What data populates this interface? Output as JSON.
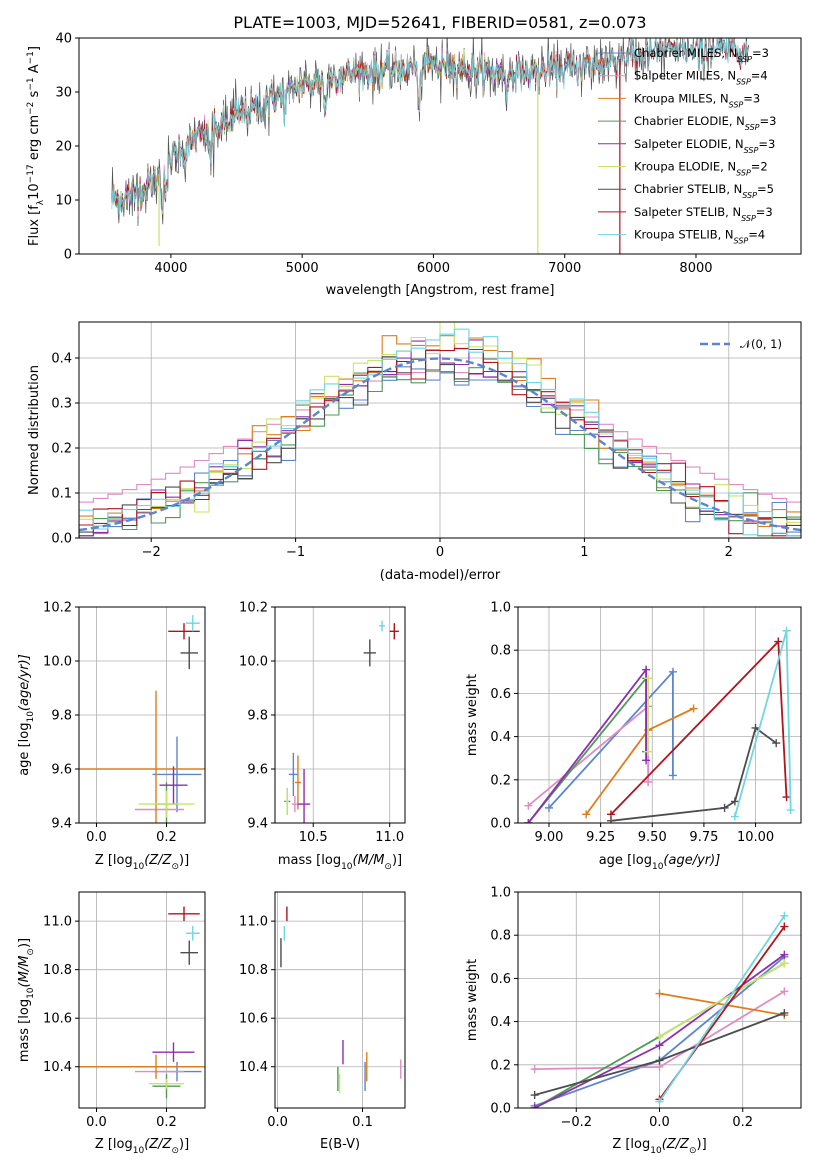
{
  "title": "PLATE=1003, MJD=52641, FIBERID=0581, z=0.073",
  "colors": {
    "Chabrier MILES": "#5b86cc",
    "Salpeter MILES": "#e08cc3",
    "Kroupa MILES": "#de7d1d",
    "Chabrier ELODIE": "#4e9a57",
    "Salpeter ELODIE": "#8e2fae",
    "Kroupa ELODIE": "#c9e36b",
    "Chabrier STELIB": "#4d4d4d",
    "Salpeter STELIB": "#b0141d",
    "Kroupa STELIB": "#6fd6e2"
  },
  "legend_spectrum": [
    {
      "key": "Chabrier MILES",
      "label": "Chabrier MILES, N",
      "sub": "SSP",
      "tail": "=3"
    },
    {
      "key": "Salpeter MILES",
      "label": "Salpeter MILES, N",
      "sub": "SSP",
      "tail": "=4"
    },
    {
      "key": "Kroupa MILES",
      "label": "Kroupa MILES, N",
      "sub": "SSP",
      "tail": "=3"
    },
    {
      "key": "Chabrier ELODIE",
      "label": "Chabrier ELODIE, N",
      "sub": "SSP",
      "tail": "=3"
    },
    {
      "key": "Salpeter ELODIE",
      "label": "Salpeter ELODIE, N",
      "sub": "SSP",
      "tail": "=3"
    },
    {
      "key": "Kroupa ELODIE",
      "label": "Kroupa ELODIE, N",
      "sub": "SSP",
      "tail": "=2"
    },
    {
      "key": "Chabrier STELIB",
      "label": "Chabrier STELIB, N",
      "sub": "SSP",
      "tail": "=5"
    },
    {
      "key": "Salpeter STELIB",
      "label": "Salpeter STELIB, N",
      "sub": "SSP",
      "tail": "=3"
    },
    {
      "key": "Kroupa STELIB",
      "label": "Kroupa STELIB, N",
      "sub": "SSP",
      "tail": "=4"
    }
  ],
  "chart_data": [
    {
      "id": "spectrum",
      "type": "line",
      "xlabel": "wavelength [Angstrom, rest frame]",
      "ylabel": "Flux [f",
      "ylabel_parts": [
        "Flux [f",
        "λ",
        "10",
        "−17",
        " erg cm",
        "−2",
        " s",
        "−1",
        " A",
        "−1",
        "]"
      ],
      "xlim": [
        3300,
        8800
      ],
      "ylim": [
        0,
        40
      ],
      "xticks": [
        4000,
        5000,
        6000,
        7000,
        8000
      ],
      "yticks": [
        0,
        10,
        20,
        30,
        40
      ],
      "continuum": [
        [
          3550,
          10
        ],
        [
          3700,
          11
        ],
        [
          3850,
          13
        ],
        [
          3950,
          16
        ],
        [
          4050,
          19.5
        ],
        [
          4200,
          21.5
        ],
        [
          4400,
          24
        ],
        [
          4600,
          26.5
        ],
        [
          4800,
          29
        ],
        [
          5000,
          31
        ],
        [
          5200,
          32.5
        ],
        [
          5400,
          33.5
        ],
        [
          5600,
          34
        ],
        [
          5800,
          34.5
        ],
        [
          6000,
          35
        ],
        [
          6200,
          34.5
        ],
        [
          6400,
          34
        ],
        [
          6600,
          33.5
        ],
        [
          6800,
          33.5
        ],
        [
          7000,
          34
        ],
        [
          7200,
          35
        ],
        [
          7400,
          36
        ],
        [
          7600,
          37
        ],
        [
          7800,
          37.5
        ],
        [
          8000,
          37.5
        ],
        [
          8200,
          38
        ],
        [
          8400,
          38
        ]
      ],
      "absorption": [
        [
          3933,
          6
        ],
        [
          3968,
          6
        ],
        [
          4102,
          3
        ],
        [
          4300,
          5
        ],
        [
          4861,
          3
        ],
        [
          5175,
          6
        ],
        [
          5890,
          8
        ],
        [
          6563,
          4
        ],
        [
          8498,
          2
        ],
        [
          8542,
          3
        ],
        [
          8662,
          3
        ]
      ],
      "artifacts": [
        {
          "series": "Kroupa ELODIE",
          "x": 3910,
          "y": 1.5
        },
        {
          "series": "Kroupa ELODIE",
          "x": 6795,
          "y": 0
        },
        {
          "series": "Salpeter STELIB",
          "x": 7420,
          "y": 0
        }
      ]
    },
    {
      "id": "residuals",
      "type": "histogram",
      "xlabel": "(data-model)/error",
      "ylabel": "Normed distribution",
      "xlim": [
        -2.5,
        2.5
      ],
      "ylim": [
        0,
        0.48
      ],
      "xticks": [
        -2,
        -1,
        0,
        1,
        2
      ],
      "yticks": [
        0,
        0.1,
        0.2,
        0.3,
        0.4
      ],
      "grid": true,
      "legend": {
        "label": "𝒩(0, 1)",
        "position": "top-right"
      },
      "bin_width": 0.1
    },
    {
      "id": "age_vs_Z",
      "type": "errorbar",
      "xlabel": "Z [log",
      "xlabel_parts": [
        "Z [log",
        "10",
        "(Z/Z",
        "⊙",
        ")]"
      ],
      "ylabel_parts": [
        "age  [log",
        "10",
        "(age/yr)]"
      ],
      "xlim": [
        -0.05,
        0.31
      ],
      "ylim": [
        9.4,
        10.2
      ],
      "xticks": [
        "0.0",
        "0.2"
      ],
      "xtick_values": [
        0.0,
        0.2
      ],
      "yticks": [
        "9.4",
        "9.6",
        "9.8",
        "10.0",
        "10.2"
      ],
      "ytick_values": [
        9.4,
        9.6,
        9.8,
        10.0,
        10.2
      ],
      "points": [
        {
          "series": "Chabrier MILES",
          "x": 0.23,
          "y": 9.58,
          "xe": 0.07,
          "ye": 0.14
        },
        {
          "series": "Salpeter MILES",
          "x": 0.18,
          "y": 9.45,
          "xe": 0.07,
          "ye": 0.0
        },
        {
          "series": "Kroupa MILES",
          "x": 0.17,
          "y": 9.6,
          "xe": 0.22,
          "ye": 0.29
        },
        {
          "series": "Chabrier ELODIE",
          "x": 0.2,
          "y": 9.47,
          "xe": 0.03,
          "ye": 0.08
        },
        {
          "series": "Salpeter ELODIE",
          "x": 0.22,
          "y": 9.54,
          "xe": 0.04,
          "ye": 0.07
        },
        {
          "series": "Kroupa ELODIE",
          "x": 0.2,
          "y": 9.47,
          "xe": 0.08,
          "ye": 0.05
        },
        {
          "series": "Chabrier STELIB",
          "x": 0.265,
          "y": 10.03,
          "xe": 0.025,
          "ye": 0.06
        },
        {
          "series": "Salpeter STELIB",
          "x": 0.25,
          "y": 10.11,
          "xe": 0.045,
          "ye": 0.03
        },
        {
          "series": "Kroupa STELIB",
          "x": 0.275,
          "y": 10.14,
          "xe": 0.02,
          "ye": 0.03
        }
      ]
    },
    {
      "id": "age_vs_mass",
      "type": "errorbar",
      "xlabel_parts": [
        "mass [log",
        "10",
        "(M/M",
        "⊙",
        ")]"
      ],
      "xlim": [
        10.25,
        11.1
      ],
      "ylim": [
        9.4,
        10.2
      ],
      "xticks": [
        "10.5",
        "11.0"
      ],
      "xtick_values": [
        10.5,
        11.0
      ],
      "yticks": [
        "9.4",
        "9.6",
        "9.8",
        "10.0",
        "10.2"
      ],
      "ytick_values": [
        9.4,
        9.6,
        9.8,
        10.0,
        10.2
      ],
      "points": [
        {
          "series": "Chabrier MILES",
          "x": 10.37,
          "y": 9.58,
          "xe": 0.03,
          "ye": 0.08
        },
        {
          "series": "Salpeter MILES",
          "x": 10.38,
          "y": 9.47,
          "xe": 0.02,
          "ye": 0.03
        },
        {
          "series": "Kroupa MILES",
          "x": 10.4,
          "y": 9.55,
          "xe": 0.02,
          "ye": 0.1
        },
        {
          "series": "Chabrier ELODIE",
          "x": 10.33,
          "y": 9.48,
          "xe": 0.02,
          "ye": 0.05
        },
        {
          "series": "Salpeter ELODIE",
          "x": 10.44,
          "y": 9.47,
          "xe": 0.04,
          "ye": 0.13
        },
        {
          "series": "Kroupa ELODIE",
          "x": 10.33,
          "y": 9.48,
          "xe": 0.01,
          "ye": 0.05
        },
        {
          "series": "Chabrier STELIB",
          "x": 10.87,
          "y": 10.03,
          "xe": 0.04,
          "ye": 0.05
        },
        {
          "series": "Salpeter STELIB",
          "x": 11.03,
          "y": 10.11,
          "xe": 0.03,
          "ye": 0.03
        },
        {
          "series": "Kroupa STELIB",
          "x": 10.95,
          "y": 10.13,
          "xe": 0.02,
          "ye": 0.02
        }
      ]
    },
    {
      "id": "weight_vs_age",
      "type": "line",
      "xlabel_parts": [
        "age  [log",
        "10",
        "(age/yr)]"
      ],
      "ylabel": "mass weight",
      "xlim": [
        8.85,
        10.22
      ],
      "ylim": [
        0,
        1
      ],
      "xticks": [
        "9.00",
        "9.25",
        "9.50",
        "9.75",
        "10.00"
      ],
      "xtick_values": [
        9.0,
        9.25,
        9.5,
        9.75,
        10.0
      ],
      "yticks": [
        "0.0",
        "0.2",
        "0.4",
        "0.6",
        "0.8",
        "1.0"
      ],
      "ytick_values": [
        0,
        0.2,
        0.4,
        0.6,
        0.8,
        1.0
      ],
      "grid": true,
      "series": [
        {
          "name": "Chabrier MILES",
          "x": [
            9.0,
            9.6,
            9.6
          ],
          "y": [
            0.07,
            0.7,
            0.22
          ]
        },
        {
          "name": "Salpeter MILES",
          "x": [
            8.9,
            9.48,
            9.48,
            9.48
          ],
          "y": [
            0.08,
            0.54,
            0.19,
            0.19
          ]
        },
        {
          "name": "Kroupa MILES",
          "x": [
            9.18,
            9.48,
            9.7
          ],
          "y": [
            0.04,
            0.43,
            0.53
          ]
        },
        {
          "name": "Chabrier ELODIE",
          "x": [
            8.9,
            9.47,
            9.47
          ],
          "y": [
            0.0,
            0.67,
            0.33
          ]
        },
        {
          "name": "Salpeter ELODIE",
          "x": [
            8.9,
            9.47,
            9.47
          ],
          "y": [
            0.0,
            0.71,
            0.29
          ]
        },
        {
          "name": "Kroupa ELODIE",
          "x": [
            9.48,
            9.48
          ],
          "y": [
            0.67,
            0.33
          ]
        },
        {
          "name": "Chabrier STELIB",
          "x": [
            9.3,
            9.85,
            9.9,
            10.0,
            10.1
          ],
          "y": [
            0.01,
            0.07,
            0.1,
            0.44,
            0.37
          ]
        },
        {
          "name": "Salpeter STELIB",
          "x": [
            9.3,
            10.11,
            10.15
          ],
          "y": [
            0.04,
            0.84,
            0.12
          ]
        },
        {
          "name": "Kroupa STELIB",
          "x": [
            9.9,
            10.15,
            10.17
          ],
          "y": [
            0.03,
            0.89,
            0.06
          ]
        }
      ]
    },
    {
      "id": "mass_vs_Z",
      "type": "errorbar",
      "xlabel_parts": [
        "Z [log",
        "10",
        "(Z/Z",
        "⊙",
        ")]"
      ],
      "ylabel_parts": [
        "mass [log",
        "10",
        "(M/M",
        "⊙",
        ")]"
      ],
      "xlim": [
        -0.05,
        0.31
      ],
      "ylim": [
        10.23,
        11.12
      ],
      "xticks": [
        "0.0",
        "0.2"
      ],
      "xtick_values": [
        0.0,
        0.2
      ],
      "yticks": [
        "10.4",
        "10.6",
        "10.8",
        "11.0"
      ],
      "ytick_values": [
        10.4,
        10.6,
        10.8,
        11.0
      ],
      "points": [
        {
          "series": "Chabrier MILES",
          "x": 0.23,
          "y": 10.38,
          "xe": 0.07,
          "ye": 0.04
        },
        {
          "series": "Salpeter MILES",
          "x": 0.18,
          "y": 10.38,
          "xe": 0.07,
          "ye": 0.0
        },
        {
          "series": "Kroupa MILES",
          "x": 0.17,
          "y": 10.4,
          "xe": 0.22,
          "ye": 0.05
        },
        {
          "series": "Chabrier ELODIE",
          "x": 0.2,
          "y": 10.32,
          "xe": 0.04,
          "ye": 0.05
        },
        {
          "series": "Salpeter ELODIE",
          "x": 0.22,
          "y": 10.46,
          "xe": 0.06,
          "ye": 0.04
        },
        {
          "series": "Kroupa ELODIE",
          "x": 0.2,
          "y": 10.33,
          "xe": 0.05,
          "ye": 0.02
        },
        {
          "series": "Chabrier STELIB",
          "x": 0.265,
          "y": 10.87,
          "xe": 0.025,
          "ye": 0.05
        },
        {
          "series": "Salpeter STELIB",
          "x": 0.25,
          "y": 11.03,
          "xe": 0.045,
          "ye": 0.03
        },
        {
          "series": "Kroupa STELIB",
          "x": 0.275,
          "y": 10.95,
          "xe": 0.02,
          "ye": 0.03
        }
      ]
    },
    {
      "id": "mass_vs_EBV",
      "type": "errorbar",
      "xlabel": "E(B-V)",
      "xlim": [
        -0.003,
        0.15
      ],
      "ylim": [
        10.23,
        11.12
      ],
      "xticks": [
        "0.0",
        "0.1"
      ],
      "xtick_values": [
        0.0,
        0.1
      ],
      "yticks": [
        "10.4",
        "10.6",
        "10.8",
        "11.0"
      ],
      "ytick_values": [
        10.4,
        10.6,
        10.8,
        11.0
      ],
      "points": [
        {
          "series": "Chabrier MILES",
          "x": 0.103,
          "y": 10.36,
          "xe": 0.0,
          "ye": 0.06
        },
        {
          "series": "Salpeter MILES",
          "x": 0.145,
          "y": 10.39,
          "xe": 0.0,
          "ye": 0.04
        },
        {
          "series": "Kroupa MILES",
          "x": 0.105,
          "y": 10.4,
          "xe": 0.0,
          "ye": 0.06
        },
        {
          "series": "Chabrier ELODIE",
          "x": 0.071,
          "y": 10.35,
          "xe": 0.0,
          "ye": 0.05
        },
        {
          "series": "Salpeter ELODIE",
          "x": 0.077,
          "y": 10.46,
          "xe": 0.0,
          "ye": 0.05
        },
        {
          "series": "Kroupa ELODIE",
          "x": 0.073,
          "y": 10.33,
          "xe": 0.0,
          "ye": 0.04
        },
        {
          "series": "Chabrier STELIB",
          "x": 0.004,
          "y": 10.87,
          "xe": 0.0,
          "ye": 0.06
        },
        {
          "series": "Salpeter STELIB",
          "x": 0.011,
          "y": 11.03,
          "xe": 0.0,
          "ye": 0.03
        },
        {
          "series": "Kroupa STELIB",
          "x": 0.008,
          "y": 10.95,
          "xe": 0.0,
          "ye": 0.03
        }
      ]
    },
    {
      "id": "weight_vs_Z",
      "type": "line",
      "xlabel_parts": [
        "Z [log",
        "10",
        "(Z/Z",
        "⊙",
        ")]"
      ],
      "ylabel": "mass weight",
      "xlim": [
        -0.34,
        0.34
      ],
      "ylim": [
        0,
        1
      ],
      "xticks": [
        "−0.2",
        "0.0",
        "0.2"
      ],
      "xtick_values": [
        -0.2,
        0.0,
        0.2
      ],
      "yticks": [
        "0.0",
        "0.2",
        "0.4",
        "0.6",
        "0.8",
        "1.0"
      ],
      "ytick_values": [
        0,
        0.2,
        0.4,
        0.6,
        0.8,
        1.0
      ],
      "grid": true,
      "series": [
        {
          "name": "Chabrier MILES",
          "x": [
            -0.3,
            0.0,
            0.3
          ],
          "y": [
            0.01,
            0.22,
            0.7
          ]
        },
        {
          "name": "Salpeter MILES",
          "x": [
            -0.3,
            0.0,
            0.3
          ],
          "y": [
            0.18,
            0.19,
            0.54
          ]
        },
        {
          "name": "Kroupa MILES",
          "x": [
            0.0,
            0.3
          ],
          "y": [
            0.53,
            0.43
          ]
        },
        {
          "name": "Chabrier ELODIE",
          "x": [
            -0.3,
            0.0,
            0.3
          ],
          "y": [
            0.0,
            0.33,
            0.67
          ]
        },
        {
          "name": "Salpeter ELODIE",
          "x": [
            -0.3,
            0.0,
            0.3
          ],
          "y": [
            0.0,
            0.29,
            0.71
          ]
        },
        {
          "name": "Kroupa ELODIE",
          "x": [
            0.0,
            0.3
          ],
          "y": [
            0.33,
            0.67
          ]
        },
        {
          "name": "Chabrier STELIB",
          "x": [
            -0.3,
            0.0,
            0.3
          ],
          "y": [
            0.06,
            0.22,
            0.44
          ]
        },
        {
          "name": "Salpeter STELIB",
          "x": [
            0.0,
            0.3
          ],
          "y": [
            0.04,
            0.84
          ]
        },
        {
          "name": "Kroupa STELIB",
          "x": [
            0.0,
            0.3
          ],
          "y": [
            0.03,
            0.89
          ]
        }
      ]
    }
  ]
}
